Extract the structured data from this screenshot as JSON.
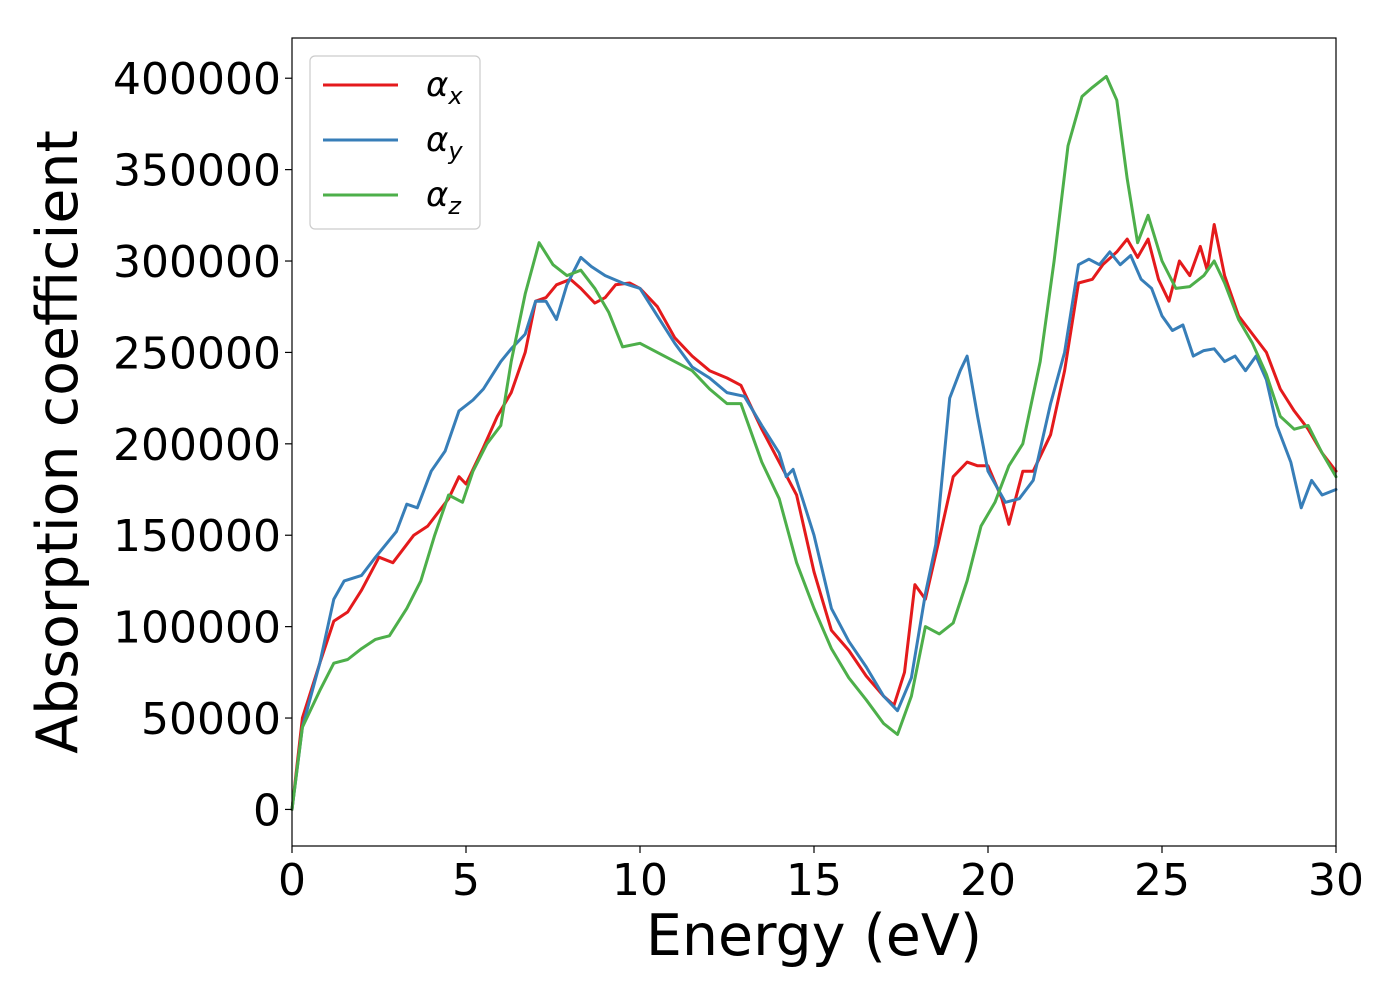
{
  "chart_data": {
    "type": "line",
    "xlabel": "Energy (eV)",
    "ylabel": "Absorption coefficient",
    "xlim": [
      0,
      30
    ],
    "ylim": [
      -20000,
      422000
    ],
    "xticks": [
      0,
      5,
      10,
      15,
      20,
      25,
      30
    ],
    "xtick_labels": [
      "0",
      "5",
      "10",
      "15",
      "20",
      "25",
      "30"
    ],
    "yticks": [
      0,
      50000,
      100000,
      150000,
      200000,
      250000,
      300000,
      350000,
      400000
    ],
    "ytick_labels": [
      "0",
      "50000",
      "100000",
      "150000",
      "200000",
      "250000",
      "300000",
      "350000",
      "400000"
    ],
    "grid": false,
    "legend_position": "top-left",
    "series": [
      {
        "name": "αx",
        "symbol": "α",
        "subscript": "x",
        "color": "#e41a1c",
        "points": [
          [
            0,
            0
          ],
          [
            0.3,
            50000
          ],
          [
            0.8,
            80000
          ],
          [
            1.2,
            103000
          ],
          [
            1.6,
            108000
          ],
          [
            2.0,
            120000
          ],
          [
            2.5,
            138000
          ],
          [
            2.9,
            135000
          ],
          [
            3.5,
            150000
          ],
          [
            3.9,
            155000
          ],
          [
            4.5,
            170000
          ],
          [
            4.8,
            182000
          ],
          [
            5.0,
            178000
          ],
          [
            5.5,
            198000
          ],
          [
            5.9,
            215000
          ],
          [
            6.3,
            228000
          ],
          [
            6.7,
            250000
          ],
          [
            7.0,
            278000
          ],
          [
            7.3,
            280000
          ],
          [
            7.6,
            287000
          ],
          [
            8.0,
            290000
          ],
          [
            8.3,
            285000
          ],
          [
            8.7,
            277000
          ],
          [
            9.0,
            280000
          ],
          [
            9.3,
            287000
          ],
          [
            9.7,
            288000
          ],
          [
            10.0,
            285000
          ],
          [
            10.5,
            275000
          ],
          [
            11.0,
            258000
          ],
          [
            11.5,
            248000
          ],
          [
            12.0,
            240000
          ],
          [
            12.5,
            236000
          ],
          [
            12.9,
            232000
          ],
          [
            13.5,
            208000
          ],
          [
            14.0,
            190000
          ],
          [
            14.5,
            172000
          ],
          [
            15.0,
            130000
          ],
          [
            15.5,
            98000
          ],
          [
            16.0,
            87000
          ],
          [
            16.5,
            73000
          ],
          [
            17.0,
            62000
          ],
          [
            17.3,
            57000
          ],
          [
            17.6,
            75000
          ],
          [
            17.9,
            123000
          ],
          [
            18.2,
            115000
          ],
          [
            18.6,
            148000
          ],
          [
            19.0,
            182000
          ],
          [
            19.4,
            190000
          ],
          [
            19.7,
            188000
          ],
          [
            20.0,
            188000
          ],
          [
            20.4,
            170000
          ],
          [
            20.6,
            156000
          ],
          [
            21.0,
            185000
          ],
          [
            21.3,
            185000
          ],
          [
            21.8,
            205000
          ],
          [
            22.2,
            240000
          ],
          [
            22.6,
            288000
          ],
          [
            23.0,
            290000
          ],
          [
            23.3,
            298000
          ],
          [
            23.7,
            305000
          ],
          [
            24.0,
            312000
          ],
          [
            24.3,
            302000
          ],
          [
            24.6,
            312000
          ],
          [
            24.9,
            290000
          ],
          [
            25.2,
            278000
          ],
          [
            25.5,
            300000
          ],
          [
            25.8,
            292000
          ],
          [
            26.1,
            308000
          ],
          [
            26.3,
            295000
          ],
          [
            26.5,
            320000
          ],
          [
            26.8,
            292000
          ],
          [
            27.2,
            270000
          ],
          [
            27.6,
            260000
          ],
          [
            28.0,
            250000
          ],
          [
            28.4,
            230000
          ],
          [
            28.8,
            218000
          ],
          [
            29.2,
            208000
          ],
          [
            29.6,
            195000
          ],
          [
            30,
            185000
          ]
        ]
      },
      {
        "name": "αy",
        "symbol": "α",
        "subscript": "y",
        "color": "#377eb8",
        "points": [
          [
            0,
            0
          ],
          [
            0.3,
            45000
          ],
          [
            0.8,
            80000
          ],
          [
            1.2,
            115000
          ],
          [
            1.5,
            125000
          ],
          [
            2.0,
            128000
          ],
          [
            2.4,
            138000
          ],
          [
            3.0,
            152000
          ],
          [
            3.3,
            167000
          ],
          [
            3.6,
            165000
          ],
          [
            4.0,
            185000
          ],
          [
            4.4,
            196000
          ],
          [
            4.8,
            218000
          ],
          [
            5.2,
            224000
          ],
          [
            5.5,
            230000
          ],
          [
            6.0,
            245000
          ],
          [
            6.3,
            252000
          ],
          [
            6.7,
            260000
          ],
          [
            7.0,
            278000
          ],
          [
            7.3,
            278000
          ],
          [
            7.6,
            268000
          ],
          [
            7.9,
            287000
          ],
          [
            8.3,
            302000
          ],
          [
            8.6,
            297000
          ],
          [
            9.0,
            292000
          ],
          [
            9.5,
            288000
          ],
          [
            10.0,
            285000
          ],
          [
            10.5,
            270000
          ],
          [
            11.0,
            255000
          ],
          [
            11.5,
            242000
          ],
          [
            12.0,
            236000
          ],
          [
            12.5,
            228000
          ],
          [
            13.0,
            226000
          ],
          [
            13.5,
            210000
          ],
          [
            14.0,
            195000
          ],
          [
            14.2,
            182000
          ],
          [
            14.4,
            186000
          ],
          [
            14.7,
            168000
          ],
          [
            15.0,
            150000
          ],
          [
            15.5,
            110000
          ],
          [
            16.0,
            92000
          ],
          [
            16.5,
            78000
          ],
          [
            17.0,
            62000
          ],
          [
            17.4,
            54000
          ],
          [
            17.8,
            72000
          ],
          [
            18.2,
            118000
          ],
          [
            18.5,
            145000
          ],
          [
            18.9,
            225000
          ],
          [
            19.2,
            240000
          ],
          [
            19.4,
            248000
          ],
          [
            19.7,
            215000
          ],
          [
            20.0,
            185000
          ],
          [
            20.5,
            168000
          ],
          [
            20.9,
            170000
          ],
          [
            21.3,
            180000
          ],
          [
            21.8,
            222000
          ],
          [
            22.2,
            250000
          ],
          [
            22.6,
            298000
          ],
          [
            22.9,
            301000
          ],
          [
            23.2,
            298000
          ],
          [
            23.5,
            305000
          ],
          [
            23.8,
            298000
          ],
          [
            24.1,
            303000
          ],
          [
            24.4,
            290000
          ],
          [
            24.7,
            285000
          ],
          [
            25.0,
            270000
          ],
          [
            25.3,
            262000
          ],
          [
            25.6,
            265000
          ],
          [
            25.9,
            248000
          ],
          [
            26.2,
            251000
          ],
          [
            26.5,
            252000
          ],
          [
            26.8,
            245000
          ],
          [
            27.1,
            248000
          ],
          [
            27.4,
            240000
          ],
          [
            27.7,
            248000
          ],
          [
            28.0,
            235000
          ],
          [
            28.3,
            210000
          ],
          [
            28.7,
            190000
          ],
          [
            29.0,
            165000
          ],
          [
            29.3,
            180000
          ],
          [
            29.6,
            172000
          ],
          [
            30,
            175000
          ]
        ]
      },
      {
        "name": "αz",
        "symbol": "α",
        "subscript": "z",
        "color": "#4daf4a",
        "points": [
          [
            0,
            0
          ],
          [
            0.3,
            45000
          ],
          [
            0.8,
            65000
          ],
          [
            1.2,
            80000
          ],
          [
            1.6,
            82000
          ],
          [
            2.0,
            88000
          ],
          [
            2.4,
            93000
          ],
          [
            2.8,
            95000
          ],
          [
            3.3,
            110000
          ],
          [
            3.7,
            125000
          ],
          [
            4.1,
            150000
          ],
          [
            4.5,
            172000
          ],
          [
            4.9,
            168000
          ],
          [
            5.2,
            185000
          ],
          [
            5.6,
            200000
          ],
          [
            6.0,
            210000
          ],
          [
            6.3,
            245000
          ],
          [
            6.7,
            282000
          ],
          [
            7.1,
            310000
          ],
          [
            7.5,
            298000
          ],
          [
            7.9,
            292000
          ],
          [
            8.3,
            295000
          ],
          [
            8.7,
            285000
          ],
          [
            9.1,
            272000
          ],
          [
            9.5,
            253000
          ],
          [
            10.0,
            255000
          ],
          [
            10.5,
            250000
          ],
          [
            11.0,
            245000
          ],
          [
            11.5,
            240000
          ],
          [
            12.0,
            230000
          ],
          [
            12.5,
            222000
          ],
          [
            12.9,
            222000
          ],
          [
            13.5,
            190000
          ],
          [
            14.0,
            170000
          ],
          [
            14.5,
            135000
          ],
          [
            15.0,
            110000
          ],
          [
            15.5,
            88000
          ],
          [
            16.0,
            72000
          ],
          [
            16.5,
            60000
          ],
          [
            17.0,
            47000
          ],
          [
            17.4,
            41000
          ],
          [
            17.8,
            62000
          ],
          [
            18.2,
            100000
          ],
          [
            18.6,
            96000
          ],
          [
            19.0,
            102000
          ],
          [
            19.4,
            125000
          ],
          [
            19.8,
            155000
          ],
          [
            20.2,
            168000
          ],
          [
            20.6,
            188000
          ],
          [
            21.0,
            200000
          ],
          [
            21.5,
            245000
          ],
          [
            21.9,
            300000
          ],
          [
            22.3,
            363000
          ],
          [
            22.7,
            390000
          ],
          [
            23.0,
            395000
          ],
          [
            23.4,
            401000
          ],
          [
            23.7,
            388000
          ],
          [
            24.0,
            345000
          ],
          [
            24.3,
            310000
          ],
          [
            24.6,
            325000
          ],
          [
            25.0,
            300000
          ],
          [
            25.4,
            285000
          ],
          [
            25.8,
            286000
          ],
          [
            26.2,
            292000
          ],
          [
            26.5,
            300000
          ],
          [
            26.8,
            288000
          ],
          [
            27.2,
            268000
          ],
          [
            27.6,
            255000
          ],
          [
            28.0,
            238000
          ],
          [
            28.4,
            215000
          ],
          [
            28.8,
            208000
          ],
          [
            29.2,
            210000
          ],
          [
            29.6,
            195000
          ],
          [
            30,
            182000
          ]
        ]
      }
    ]
  }
}
